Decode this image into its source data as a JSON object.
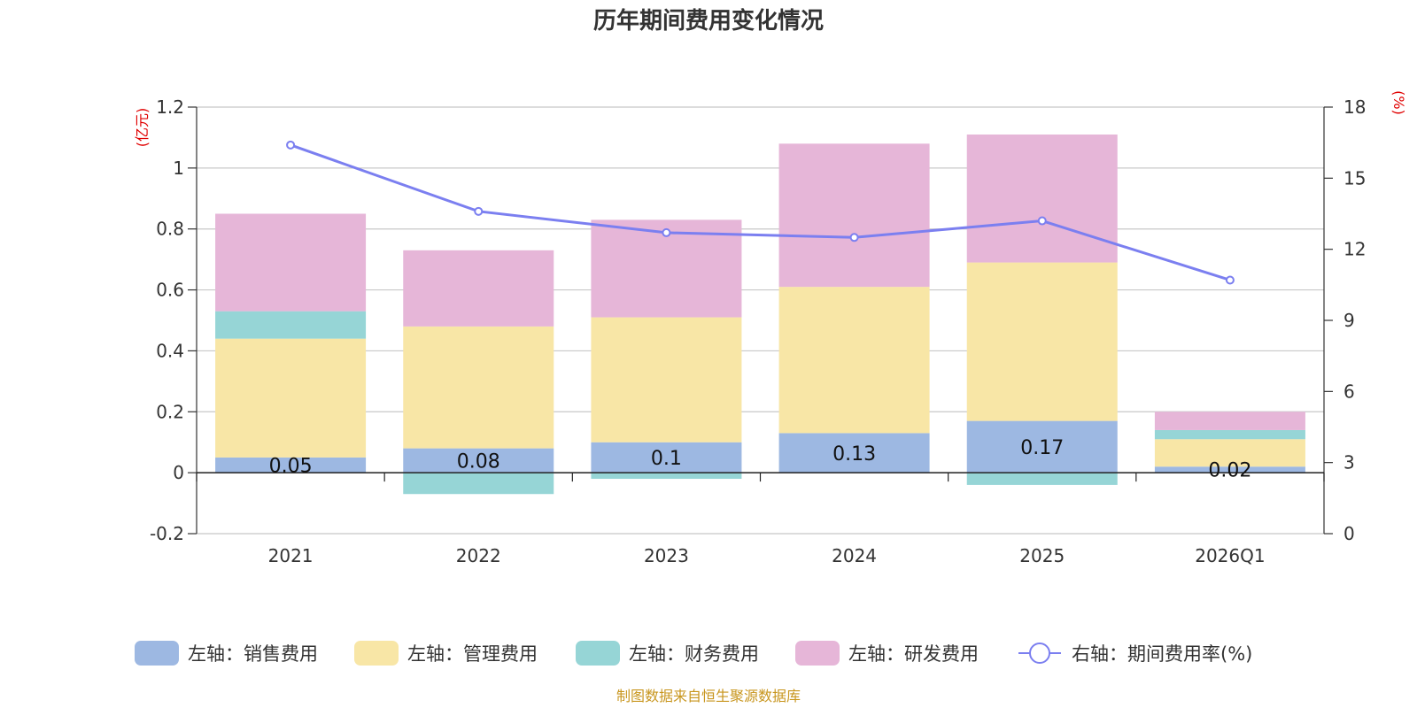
{
  "chart_data": {
    "type": "bar",
    "title": "历年期间费用变化情况",
    "categories": [
      "2021",
      "2022",
      "2023",
      "2024",
      "2025",
      "2026Q1"
    ],
    "series": [
      {
        "name": "左轴：销售费用",
        "axis": "left",
        "color": "#9db8e2",
        "values": [
          0.05,
          0.08,
          0.1,
          0.13,
          0.17,
          0.02
        ],
        "labels": [
          "0.05",
          "0.08",
          "0.1",
          "0.13",
          "0.17",
          "0.02"
        ]
      },
      {
        "name": "左轴：管理费用",
        "axis": "left",
        "color": "#f8e6a6",
        "values": [
          0.39,
          0.4,
          0.41,
          0.48,
          0.52,
          0.09
        ]
      },
      {
        "name": "左轴：财务费用",
        "axis": "left",
        "color": "#96d5d6",
        "values": [
          0.09,
          -0.07,
          -0.02,
          0.0,
          -0.04,
          0.03
        ]
      },
      {
        "name": "左轴：研发费用",
        "axis": "left",
        "color": "#e6b6d8",
        "values": [
          0.32,
          0.25,
          0.32,
          0.47,
          0.42,
          0.06
        ]
      },
      {
        "name": "右轴：期间费用率(%)",
        "axis": "right",
        "type": "line",
        "color": "#7b7ff0",
        "values": [
          16.4,
          13.6,
          12.7,
          12.5,
          13.2,
          10.7
        ]
      }
    ],
    "y_left": {
      "unit": "(亿元)",
      "min": -0.2,
      "max": 1.2,
      "ticks": [
        -0.2,
        0,
        0.2,
        0.4,
        0.6,
        0.8,
        1,
        1.2
      ],
      "tick_labels": [
        "-0.2",
        "0",
        "0.2",
        "0.4",
        "0.6",
        "0.8",
        "1",
        "1.2"
      ]
    },
    "y_right": {
      "unit": "(%)",
      "min": 0,
      "max": 18,
      "ticks": [
        0,
        3,
        6,
        9,
        12,
        15,
        18
      ],
      "tick_labels": [
        "0",
        "3",
        "6",
        "9",
        "12",
        "15",
        "18"
      ]
    },
    "grid": true,
    "legend_position": "bottom"
  },
  "footer": "制图数据来自恒生聚源数据库"
}
